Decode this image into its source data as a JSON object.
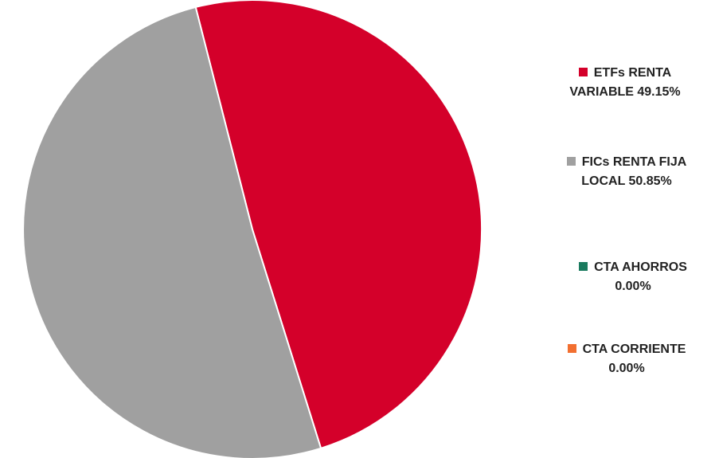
{
  "chart_data": {
    "type": "pie",
    "title": "",
    "slices": [
      {
        "label": "ETFs RENTA VARIABLE",
        "value": 49.15,
        "percent_text": "49.15%",
        "color": "#d4002a"
      },
      {
        "label": "FICs RENTA FIJA LOCAL",
        "value": 50.85,
        "percent_text": "50.85%",
        "color": "#a0a0a0"
      },
      {
        "label": "CTA AHORROS",
        "value": 0.0,
        "percent_text": "0.00%",
        "color": "#1a7a5e"
      },
      {
        "label": "CTA CORRIENTE",
        "value": 0.0,
        "percent_text": "0.00%",
        "color": "#f26f30"
      }
    ],
    "legend_position": "right"
  },
  "legend": [
    {
      "line1": "ETFs RENTA",
      "line2": "VARIABLE 49.15%"
    },
    {
      "line1": "FICs RENTA FIJA",
      "line2": "LOCAL 50.85%"
    },
    {
      "line1": "CTA AHORROS",
      "line2": "0.00%"
    },
    {
      "line1": "CTA CORRIENTE",
      "line2": "0.00%"
    }
  ]
}
